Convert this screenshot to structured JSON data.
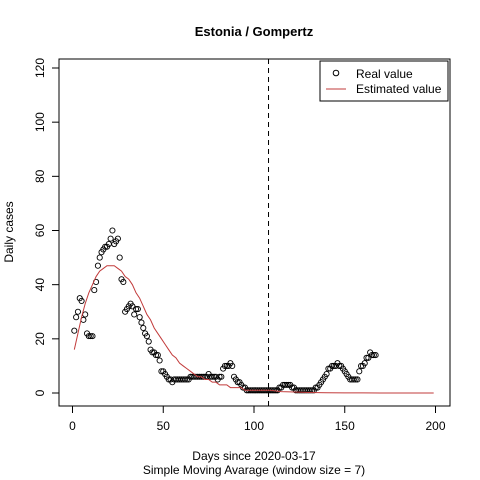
{
  "chart_data": {
    "type": "scatter",
    "title": "Estonia / Gompertz",
    "xlabel": "Days since 2020-03-17",
    "xsublabel": "Simple Moving Avarage (window size = 7)",
    "ylabel": "Daily cases",
    "xlim": [
      0,
      200
    ],
    "ylim": [
      0,
      120
    ],
    "xticks": [
      0,
      50,
      100,
      150,
      200
    ],
    "yticks": [
      0,
      20,
      40,
      60,
      80,
      100,
      120
    ],
    "grid": false,
    "legend_position": "top-right",
    "vline_x": 108,
    "series": [
      {
        "name": "Real value",
        "kind": "points",
        "color": "#000000",
        "points": [
          [
            1,
            23
          ],
          [
            2,
            28
          ],
          [
            3,
            30
          ],
          [
            4,
            35
          ],
          [
            5,
            34
          ],
          [
            6,
            27
          ],
          [
            7,
            29
          ],
          [
            8,
            22
          ],
          [
            9,
            21
          ],
          [
            10,
            21
          ],
          [
            11,
            21
          ],
          [
            12,
            38
          ],
          [
            13,
            41
          ],
          [
            14,
            47
          ],
          [
            15,
            50
          ],
          [
            16,
            52
          ],
          [
            17,
            53
          ],
          [
            18,
            54
          ],
          [
            19,
            54
          ],
          [
            20,
            55
          ],
          [
            21,
            57
          ],
          [
            22,
            60
          ],
          [
            23,
            55
          ],
          [
            24,
            56
          ],
          [
            25,
            57
          ],
          [
            26,
            50
          ],
          [
            27,
            42
          ],
          [
            28,
            41
          ],
          [
            29,
            30
          ],
          [
            30,
            31
          ],
          [
            31,
            32
          ],
          [
            32,
            33
          ],
          [
            33,
            32
          ],
          [
            34,
            29
          ],
          [
            35,
            31
          ],
          [
            36,
            31
          ],
          [
            37,
            28
          ],
          [
            38,
            26
          ],
          [
            39,
            24
          ],
          [
            40,
            22
          ],
          [
            41,
            21
          ],
          [
            42,
            19
          ],
          [
            43,
            16
          ],
          [
            44,
            15
          ],
          [
            45,
            15
          ],
          [
            46,
            14
          ],
          [
            47,
            14
          ],
          [
            48,
            12
          ],
          [
            49,
            8
          ],
          [
            50,
            8
          ],
          [
            51,
            7
          ],
          [
            52,
            6
          ],
          [
            53,
            5
          ],
          [
            54,
            5
          ],
          [
            55,
            4
          ],
          [
            56,
            5
          ],
          [
            57,
            5
          ],
          [
            58,
            5
          ],
          [
            59,
            5
          ],
          [
            60,
            5
          ],
          [
            61,
            5
          ],
          [
            62,
            5
          ],
          [
            63,
            5
          ],
          [
            64,
            5
          ],
          [
            65,
            6
          ],
          [
            66,
            6
          ],
          [
            67,
            6
          ],
          [
            68,
            6
          ],
          [
            69,
            6
          ],
          [
            70,
            6
          ],
          [
            71,
            6
          ],
          [
            72,
            6
          ],
          [
            73,
            6
          ],
          [
            74,
            6
          ],
          [
            75,
            7
          ],
          [
            76,
            6
          ],
          [
            77,
            6
          ],
          [
            78,
            6
          ],
          [
            79,
            6
          ],
          [
            80,
            5
          ],
          [
            81,
            6
          ],
          [
            82,
            6
          ],
          [
            83,
            9
          ],
          [
            84,
            10
          ],
          [
            85,
            10
          ],
          [
            86,
            10
          ],
          [
            87,
            11
          ],
          [
            88,
            10
          ],
          [
            89,
            6
          ],
          [
            90,
            5
          ],
          [
            91,
            4
          ],
          [
            92,
            4
          ],
          [
            93,
            3
          ],
          [
            94,
            2
          ],
          [
            95,
            2
          ],
          [
            96,
            1
          ],
          [
            97,
            1
          ],
          [
            98,
            1
          ],
          [
            99,
            1
          ],
          [
            100,
            1
          ],
          [
            101,
            1
          ],
          [
            102,
            1
          ],
          [
            103,
            1
          ],
          [
            104,
            1
          ],
          [
            105,
            1
          ],
          [
            106,
            1
          ],
          [
            107,
            1
          ],
          [
            108,
            1
          ],
          [
            109,
            1
          ],
          [
            110,
            1
          ],
          [
            111,
            1
          ],
          [
            112,
            1
          ],
          [
            113,
            1
          ],
          [
            114,
            2
          ],
          [
            115,
            2
          ],
          [
            116,
            3
          ],
          [
            117,
            3
          ],
          [
            118,
            3
          ],
          [
            119,
            3
          ],
          [
            120,
            3
          ],
          [
            121,
            2
          ],
          [
            122,
            2
          ],
          [
            123,
            1
          ],
          [
            124,
            1
          ],
          [
            125,
            1
          ],
          [
            126,
            1
          ],
          [
            127,
            1
          ],
          [
            128,
            1
          ],
          [
            129,
            1
          ],
          [
            130,
            1
          ],
          [
            131,
            1
          ],
          [
            132,
            1
          ],
          [
            133,
            1
          ],
          [
            134,
            2
          ],
          [
            135,
            2
          ],
          [
            136,
            3
          ],
          [
            137,
            4
          ],
          [
            138,
            5
          ],
          [
            139,
            6
          ],
          [
            140,
            7
          ],
          [
            141,
            9
          ],
          [
            142,
            9
          ],
          [
            143,
            10
          ],
          [
            144,
            10
          ],
          [
            145,
            10
          ],
          [
            146,
            11
          ],
          [
            147,
            10
          ],
          [
            148,
            10
          ],
          [
            149,
            9
          ],
          [
            150,
            8
          ],
          [
            151,
            7
          ],
          [
            152,
            6
          ],
          [
            153,
            5
          ],
          [
            154,
            5
          ],
          [
            155,
            5
          ],
          [
            156,
            5
          ],
          [
            157,
            5
          ],
          [
            158,
            8
          ],
          [
            159,
            10
          ],
          [
            160,
            10
          ],
          [
            161,
            11
          ],
          [
            162,
            13
          ],
          [
            163,
            13
          ],
          [
            164,
            15
          ],
          [
            165,
            14
          ],
          [
            166,
            14
          ],
          [
            167,
            14
          ]
        ]
      },
      {
        "name": "Estimated value",
        "kind": "line",
        "color": "#c23b3b",
        "points": [
          [
            1,
            16
          ],
          [
            3,
            22
          ],
          [
            5,
            28
          ],
          [
            7,
            33
          ],
          [
            9,
            37
          ],
          [
            11,
            40
          ],
          [
            13,
            43
          ],
          [
            15,
            45
          ],
          [
            17,
            46
          ],
          [
            19,
            47
          ],
          [
            21,
            47
          ],
          [
            23,
            47
          ],
          [
            25,
            46
          ],
          [
            27,
            45
          ],
          [
            29,
            43
          ],
          [
            31,
            42
          ],
          [
            33,
            40
          ],
          [
            35,
            37
          ],
          [
            37,
            35
          ],
          [
            39,
            32
          ],
          [
            41,
            29
          ],
          [
            43,
            27
          ],
          [
            45,
            24
          ],
          [
            47,
            22
          ],
          [
            49,
            20
          ],
          [
            51,
            18
          ],
          [
            53,
            16
          ],
          [
            55,
            14
          ],
          [
            57,
            13
          ],
          [
            59,
            11
          ],
          [
            61,
            10
          ],
          [
            63,
            9
          ],
          [
            65,
            8
          ],
          [
            67,
            7
          ],
          [
            69,
            6
          ],
          [
            71,
            6
          ],
          [
            73,
            5
          ],
          [
            75,
            5
          ],
          [
            77,
            4
          ],
          [
            79,
            4
          ],
          [
            81,
            3
          ],
          [
            83,
            3
          ],
          [
            85,
            3
          ],
          [
            87,
            2
          ],
          [
            89,
            2
          ],
          [
            91,
            2
          ],
          [
            93,
            2
          ],
          [
            95,
            1
          ],
          [
            97,
            1
          ],
          [
            99,
            1
          ],
          [
            101,
            1
          ],
          [
            103,
            1
          ],
          [
            105,
            1
          ],
          [
            107,
            1
          ],
          [
            109,
            1
          ],
          [
            115,
            0.5
          ],
          [
            120,
            0.4
          ],
          [
            130,
            0.2
          ],
          [
            140,
            0.1
          ],
          [
            150,
            0.05
          ],
          [
            160,
            0.03
          ],
          [
            170,
            0.02
          ],
          [
            180,
            0.01
          ],
          [
            190,
            0.01
          ],
          [
            199,
            0
          ]
        ]
      }
    ]
  }
}
